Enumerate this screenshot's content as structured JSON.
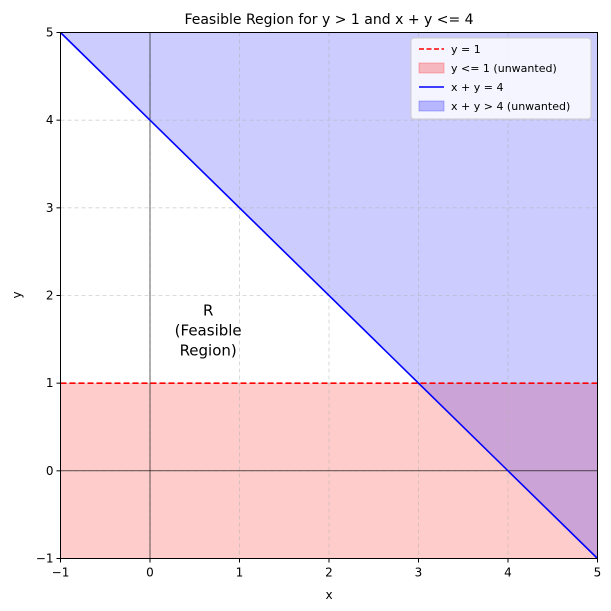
{
  "chart_data": {
    "type": "area",
    "title": "Feasible Region for y > 1 and x + y <= 4",
    "xlabel": "x",
    "ylabel": "y",
    "xlim": [
      -1,
      5
    ],
    "ylim": [
      -1,
      5
    ],
    "xticks": [
      -1,
      0,
      1,
      2,
      3,
      4,
      5
    ],
    "yticks": [
      -1,
      0,
      1,
      2,
      3,
      4,
      5
    ],
    "grid": true,
    "legend_position": "top-right",
    "series": [
      {
        "name": "y = 1",
        "kind": "line",
        "style": "dashed",
        "color": "#ff0000",
        "x": [
          -1,
          5
        ],
        "y": [
          1,
          1
        ]
      },
      {
        "name": "y <= 1 (unwanted)",
        "kind": "fill",
        "color": "#ff0000",
        "alpha": 0.2,
        "x": [
          -1,
          5
        ],
        "y_low": [
          -1,
          -1
        ],
        "y_high": [
          1,
          1
        ]
      },
      {
        "name": "x + y = 4",
        "kind": "line",
        "style": "solid",
        "color": "#0000ff",
        "x": [
          -1,
          5
        ],
        "y": [
          5,
          -1
        ]
      },
      {
        "name": "x + y > 4 (unwanted)",
        "kind": "fill",
        "color": "#0000ff",
        "alpha": 0.2,
        "x": [
          -1,
          5
        ],
        "y_low": [
          5,
          -1
        ],
        "y_high": [
          5,
          5
        ]
      }
    ],
    "annotations": [
      {
        "text": [
          "R",
          "(Feasible",
          "Region)"
        ],
        "x": 0.65,
        "y": 1.6
      }
    ]
  }
}
